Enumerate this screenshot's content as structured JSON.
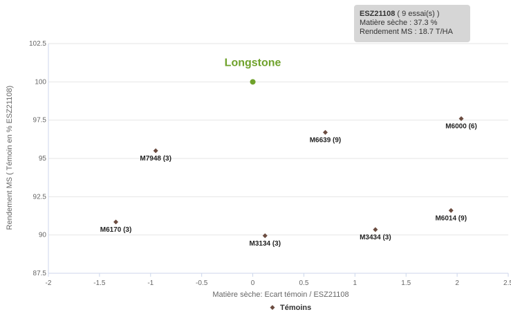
{
  "tooltip": {
    "title": "ESZ21108",
    "title_suffix": " ( 9 essai(s) )",
    "line1": "Matière sèche : 37.3 %",
    "line2": "Rendement MS : 18.7 T/HA"
  },
  "legend": {
    "label": "Témoins"
  },
  "chart_data": {
    "type": "scatter",
    "xlabel": "Matière sèche: Ecart témoin / ESZ21108",
    "ylabel": "Rendement MS ( Témoin en % ESZ21108)",
    "xlim": [
      -2,
      2.5
    ],
    "ylim": [
      87.5,
      102.5
    ],
    "x_ticks": [
      "-2",
      "-1.5",
      "-1",
      "-0.5",
      "0",
      "0.5",
      "1",
      "1.5",
      "2",
      "2.5"
    ],
    "y_ticks": [
      "87.5",
      "90",
      "92.5",
      "95",
      "97.5",
      "100",
      "102.5"
    ],
    "grid": "horizontal",
    "legend_position": "bottom-center",
    "colors": {
      "temoins": "#6b4c40",
      "highlight": "#6fa22b",
      "grid": "#e6e6e6",
      "axis": "#ccd6eb"
    },
    "highlight": {
      "label": "Longstone",
      "x": 0,
      "y": 100
    },
    "series": [
      {
        "name": "Témoins",
        "points": [
          {
            "label": "M6000 (6)",
            "x": 2.04,
            "y": 97.6
          },
          {
            "label": "M6639 (9)",
            "x": 0.71,
            "y": 96.7
          },
          {
            "label": "M7948 (3)",
            "x": -0.95,
            "y": 95.5
          },
          {
            "label": "M6170 (3)",
            "x": -1.34,
            "y": 90.85
          },
          {
            "label": "M3134 (3)",
            "x": 0.12,
            "y": 89.95
          },
          {
            "label": "M3434 (3)",
            "x": 1.2,
            "y": 90.35
          },
          {
            "label": "M6014 (9)",
            "x": 1.94,
            "y": 91.6
          }
        ]
      }
    ]
  }
}
